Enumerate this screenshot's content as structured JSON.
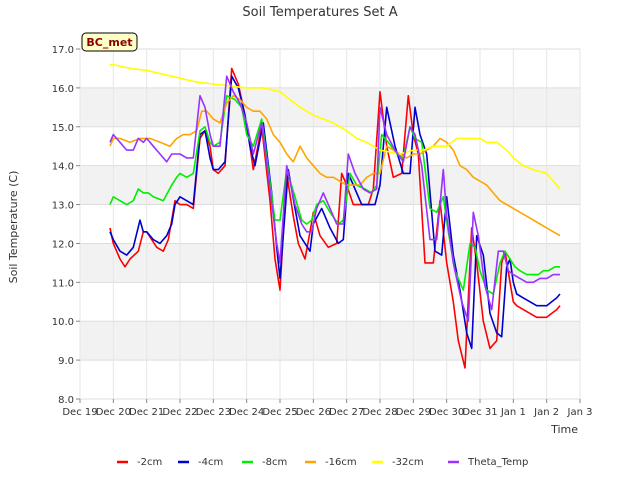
{
  "chart_data": {
    "type": "line",
    "title": "Soil Temperatures Set A",
    "xlabel": "Time",
    "ylabel": "Soil Temperature (C)",
    "ylim": [
      8.0,
      17.0
    ],
    "xlim": [
      0,
      15
    ],
    "y_ticks": [
      "8.0",
      "9.0",
      "10.0",
      "11.0",
      "12.0",
      "13.0",
      "14.0",
      "15.0",
      "16.0",
      "17.0"
    ],
    "x_ticks": [
      {
        "pos": 0,
        "label": "Dec 19"
      },
      {
        "pos": 1,
        "label": "Dec 20"
      },
      {
        "pos": 2,
        "label": "Dec 21"
      },
      {
        "pos": 3,
        "label": "Dec 22"
      },
      {
        "pos": 4,
        "label": "Dec 23"
      },
      {
        "pos": 5,
        "label": "Dec 24"
      },
      {
        "pos": 6,
        "label": "Dec 25"
      },
      {
        "pos": 7,
        "label": "Dec 26"
      },
      {
        "pos": 8,
        "label": "Dec 27"
      },
      {
        "pos": 9,
        "label": "Dec 28"
      },
      {
        "pos": 10,
        "label": "Dec 29"
      },
      {
        "pos": 11,
        "label": "Dec 30"
      },
      {
        "pos": 12,
        "label": "Dec 31"
      },
      {
        "pos": 13,
        "label": "Jan 1"
      },
      {
        "pos": 14,
        "label": "Jan 2"
      },
      {
        "pos": 15,
        "label": "Jan 3"
      }
    ],
    "station_label": "BC_met",
    "grid": "horizontal bands",
    "legend_position": "bottom",
    "series": [
      {
        "name": "-2cm",
        "color": "#ff0000",
        "x": [
          0.9,
          1.0,
          1.2,
          1.35,
          1.5,
          1.75,
          1.9,
          2.0,
          2.15,
          2.3,
          2.5,
          2.65,
          2.75,
          2.85,
          3.0,
          3.2,
          3.4,
          3.6,
          3.75,
          3.9,
          4.0,
          4.15,
          4.35,
          4.55,
          4.75,
          4.9,
          5.05,
          5.2,
          5.45,
          5.7,
          5.85,
          6.0,
          6.2,
          6.4,
          6.55,
          6.65,
          6.75,
          6.9,
          7.0,
          7.2,
          7.45,
          7.7,
          7.85,
          8.0,
          8.2,
          8.4,
          8.65,
          8.8,
          9.0,
          9.2,
          9.4,
          9.65,
          9.85,
          10.0,
          10.15,
          10.35,
          10.6,
          10.8,
          11.0,
          11.2,
          11.35,
          11.55,
          11.75,
          11.9,
          12.1,
          12.3,
          12.5,
          12.65,
          12.75,
          12.9,
          13.0,
          13.1,
          13.3,
          13.5,
          13.7,
          13.85,
          14.0,
          14.15,
          14.3,
          14.4
        ],
        "values": [
          12.4,
          12.0,
          11.6,
          11.4,
          11.6,
          11.8,
          12.3,
          12.3,
          12.1,
          11.9,
          11.8,
          12.1,
          12.6,
          13.1,
          13.0,
          13.0,
          12.9,
          14.7,
          14.9,
          14.5,
          13.9,
          13.8,
          14.0,
          16.5,
          16.1,
          15.5,
          14.8,
          13.9,
          15.0,
          13.1,
          11.6,
          10.8,
          13.8,
          12.7,
          12.0,
          11.8,
          11.6,
          12.3,
          12.8,
          12.2,
          11.9,
          12.0,
          13.8,
          13.5,
          13.0,
          13.0,
          13.0,
          13.4,
          15.9,
          14.5,
          13.7,
          13.8,
          15.8,
          14.8,
          14.3,
          11.5,
          11.5,
          13.1,
          11.5,
          10.5,
          9.5,
          8.8,
          12.4,
          11.5,
          10.0,
          9.3,
          9.5,
          11.5,
          11.8,
          11.0,
          10.5,
          10.4,
          10.3,
          10.2,
          10.1,
          10.1,
          10.1,
          10.2,
          10.3,
          10.4
        ]
      },
      {
        "name": "-4cm",
        "color": "#0000cc",
        "x": [
          0.9,
          1.0,
          1.2,
          1.4,
          1.6,
          1.8,
          1.9,
          2.0,
          2.2,
          2.4,
          2.6,
          2.75,
          2.85,
          3.0,
          3.2,
          3.4,
          3.6,
          3.75,
          3.9,
          4.0,
          4.15,
          4.35,
          4.55,
          4.75,
          4.95,
          5.1,
          5.25,
          5.5,
          5.75,
          5.9,
          6.0,
          6.25,
          6.45,
          6.6,
          6.75,
          6.9,
          7.0,
          7.25,
          7.5,
          7.75,
          7.9,
          8.05,
          8.25,
          8.45,
          8.7,
          8.85,
          9.0,
          9.2,
          9.45,
          9.7,
          9.9,
          10.05,
          10.2,
          10.4,
          10.65,
          10.85,
          11.0,
          11.2,
          11.4,
          11.6,
          11.75,
          11.9,
          12.1,
          12.3,
          12.5,
          12.65,
          12.8,
          12.9,
          13.0,
          13.1,
          13.3,
          13.5,
          13.7,
          13.85,
          14.0,
          14.15,
          14.3,
          14.4
        ],
        "values": [
          12.3,
          12.1,
          11.8,
          11.7,
          11.9,
          12.6,
          12.3,
          12.3,
          12.1,
          12.0,
          12.2,
          12.5,
          13.0,
          13.2,
          13.1,
          13.0,
          14.8,
          14.9,
          14.2,
          13.9,
          13.9,
          14.1,
          16.3,
          16.0,
          15.3,
          14.5,
          14.0,
          15.1,
          13.3,
          11.9,
          11.1,
          13.9,
          12.9,
          12.2,
          12.0,
          11.8,
          12.5,
          12.9,
          12.4,
          12.0,
          12.1,
          13.8,
          13.4,
          13.0,
          13.0,
          13.0,
          13.5,
          15.5,
          14.5,
          13.8,
          13.8,
          15.5,
          14.8,
          14.3,
          11.8,
          11.7,
          13.2,
          11.7,
          10.8,
          9.7,
          9.3,
          12.2,
          11.7,
          10.2,
          9.7,
          9.6,
          11.4,
          11.6,
          11.0,
          10.7,
          10.6,
          10.5,
          10.4,
          10.4,
          10.4,
          10.5,
          10.6,
          10.7
        ]
      },
      {
        "name": "-8cm",
        "color": "#00ee00",
        "x": [
          0.9,
          1.0,
          1.2,
          1.4,
          1.6,
          1.75,
          1.9,
          2.05,
          2.2,
          2.5,
          2.75,
          2.9,
          3.0,
          3.2,
          3.4,
          3.6,
          3.75,
          3.9,
          4.0,
          4.2,
          4.4,
          4.65,
          4.85,
          5.0,
          5.2,
          5.45,
          5.65,
          5.85,
          6.0,
          6.2,
          6.45,
          6.65,
          6.8,
          6.95,
          7.1,
          7.3,
          7.5,
          7.75,
          7.9,
          8.1,
          8.3,
          8.55,
          8.75,
          8.9,
          9.05,
          9.25,
          9.5,
          9.7,
          9.9,
          10.05,
          10.25,
          10.5,
          10.7,
          10.9,
          11.05,
          11.25,
          11.5,
          11.7,
          11.85,
          12.0,
          12.2,
          12.4,
          12.6,
          12.75,
          12.9,
          13.05,
          13.2,
          13.4,
          13.6,
          13.75,
          13.9,
          14.05,
          14.25,
          14.4
        ],
        "values": [
          13.0,
          13.2,
          13.1,
          13.0,
          13.1,
          13.4,
          13.3,
          13.3,
          13.2,
          13.1,
          13.5,
          13.7,
          13.8,
          13.7,
          13.8,
          14.9,
          15.0,
          14.6,
          14.5,
          14.6,
          15.8,
          15.7,
          15.5,
          14.8,
          14.5,
          15.2,
          13.9,
          12.6,
          12.6,
          13.9,
          13.2,
          12.6,
          12.5,
          12.6,
          13.0,
          13.1,
          12.8,
          12.5,
          12.6,
          13.8,
          13.5,
          13.4,
          13.3,
          13.5,
          14.8,
          14.6,
          14.3,
          14.2,
          15.0,
          14.7,
          14.6,
          12.9,
          12.8,
          13.2,
          12.3,
          11.3,
          10.8,
          12.0,
          11.9,
          11.3,
          10.8,
          10.7,
          11.5,
          11.8,
          11.6,
          11.4,
          11.3,
          11.2,
          11.2,
          11.2,
          11.3,
          11.3,
          11.4,
          11.4
        ]
      },
      {
        "name": "-16cm",
        "color": "#ffa500",
        "x": [
          0.9,
          1.0,
          1.2,
          1.5,
          1.8,
          2.1,
          2.4,
          2.7,
          2.9,
          3.1,
          3.3,
          3.5,
          3.65,
          3.8,
          4.0,
          4.2,
          4.4,
          4.6,
          4.8,
          5.0,
          5.2,
          5.4,
          5.6,
          5.8,
          6.0,
          6.2,
          6.4,
          6.6,
          6.8,
          7.0,
          7.2,
          7.4,
          7.6,
          7.8,
          8.0,
          8.2,
          8.4,
          8.6,
          8.8,
          9.0,
          9.2,
          9.4,
          9.6,
          9.8,
          10.0,
          10.2,
          10.4,
          10.6,
          10.8,
          11.0,
          11.2,
          11.4,
          11.6,
          11.8,
          12.0,
          12.2,
          12.4,
          12.6,
          12.8,
          13.0,
          13.2,
          13.4,
          13.6,
          13.8,
          14.0,
          14.2,
          14.4
        ],
        "values": [
          14.5,
          14.7,
          14.7,
          14.6,
          14.7,
          14.7,
          14.6,
          14.5,
          14.7,
          14.8,
          14.8,
          14.9,
          15.4,
          15.4,
          15.2,
          15.1,
          15.6,
          15.8,
          15.7,
          15.5,
          15.4,
          15.4,
          15.2,
          14.8,
          14.6,
          14.3,
          14.1,
          14.5,
          14.2,
          14.0,
          13.8,
          13.7,
          13.7,
          13.6,
          13.5,
          13.5,
          13.5,
          13.7,
          13.8,
          13.8,
          14.5,
          14.4,
          14.3,
          14.2,
          14.3,
          14.3,
          14.4,
          14.5,
          14.7,
          14.6,
          14.4,
          14.0,
          13.9,
          13.7,
          13.6,
          13.5,
          13.3,
          13.1,
          13.0,
          12.9,
          12.8,
          12.7,
          12.6,
          12.5,
          12.4,
          12.3,
          12.2
        ]
      },
      {
        "name": "-32cm",
        "color": "#ffff00",
        "x": [
          0.9,
          1.0,
          1.5,
          2.0,
          2.5,
          3.0,
          3.5,
          4.0,
          4.5,
          5.0,
          5.5,
          6.0,
          6.3,
          6.6,
          7.0,
          7.3,
          7.6,
          8.0,
          8.3,
          8.6,
          9.0,
          9.3,
          9.6,
          10.0,
          10.3,
          10.6,
          11.0,
          11.3,
          11.6,
          12.0,
          12.2,
          12.5,
          12.8,
          13.0,
          13.3,
          13.6,
          14.0,
          14.2,
          14.4
        ],
        "values": [
          16.6,
          16.6,
          16.5,
          16.45,
          16.35,
          16.25,
          16.15,
          16.1,
          16.05,
          16.0,
          16.0,
          15.9,
          15.7,
          15.5,
          15.3,
          15.2,
          15.1,
          14.9,
          14.7,
          14.6,
          14.4,
          14.35,
          14.3,
          14.4,
          14.4,
          14.5,
          14.5,
          14.7,
          14.7,
          14.7,
          14.6,
          14.6,
          14.4,
          14.2,
          14.0,
          13.9,
          13.8,
          13.6,
          13.4
        ]
      },
      {
        "name": "Theta_Temp",
        "color": "#9933ff",
        "x": [
          0.9,
          1.0,
          1.2,
          1.4,
          1.6,
          1.75,
          1.9,
          2.0,
          2.2,
          2.4,
          2.6,
          2.75,
          2.9,
          3.0,
          3.2,
          3.4,
          3.6,
          3.75,
          3.9,
          4.0,
          4.2,
          4.4,
          4.6,
          4.8,
          5.0,
          5.2,
          5.45,
          5.7,
          5.9,
          6.0,
          6.2,
          6.45,
          6.65,
          6.8,
          6.95,
          7.1,
          7.3,
          7.5,
          7.7,
          7.9,
          8.05,
          8.25,
          8.5,
          8.7,
          8.9,
          9.0,
          9.2,
          9.45,
          9.7,
          9.9,
          10.05,
          10.25,
          10.5,
          10.7,
          10.9,
          11.0,
          11.2,
          11.45,
          11.65,
          11.8,
          11.95,
          12.15,
          12.35,
          12.55,
          12.7,
          12.85,
          13.0,
          13.2,
          13.4,
          13.6,
          13.8,
          14.0,
          14.2,
          14.4
        ],
        "values": [
          14.6,
          14.8,
          14.6,
          14.4,
          14.4,
          14.7,
          14.6,
          14.7,
          14.5,
          14.3,
          14.1,
          14.3,
          14.3,
          14.3,
          14.2,
          14.2,
          15.8,
          15.5,
          14.8,
          14.5,
          14.5,
          16.3,
          15.9,
          15.6,
          15.1,
          14.3,
          15.1,
          13.4,
          12.0,
          11.5,
          14.0,
          13.0,
          12.5,
          12.3,
          12.3,
          12.9,
          13.3,
          12.9,
          12.5,
          12.5,
          14.3,
          13.8,
          13.4,
          13.3,
          13.4,
          15.5,
          14.8,
          14.4,
          14.1,
          15.0,
          14.8,
          14.0,
          12.1,
          12.1,
          13.9,
          12.7,
          11.5,
          10.5,
          10.0,
          12.8,
          12.2,
          10.9,
          10.3,
          11.8,
          11.8,
          11.3,
          11.2,
          11.1,
          11.0,
          11.0,
          11.1,
          11.1,
          11.2,
          11.2
        ]
      }
    ]
  }
}
